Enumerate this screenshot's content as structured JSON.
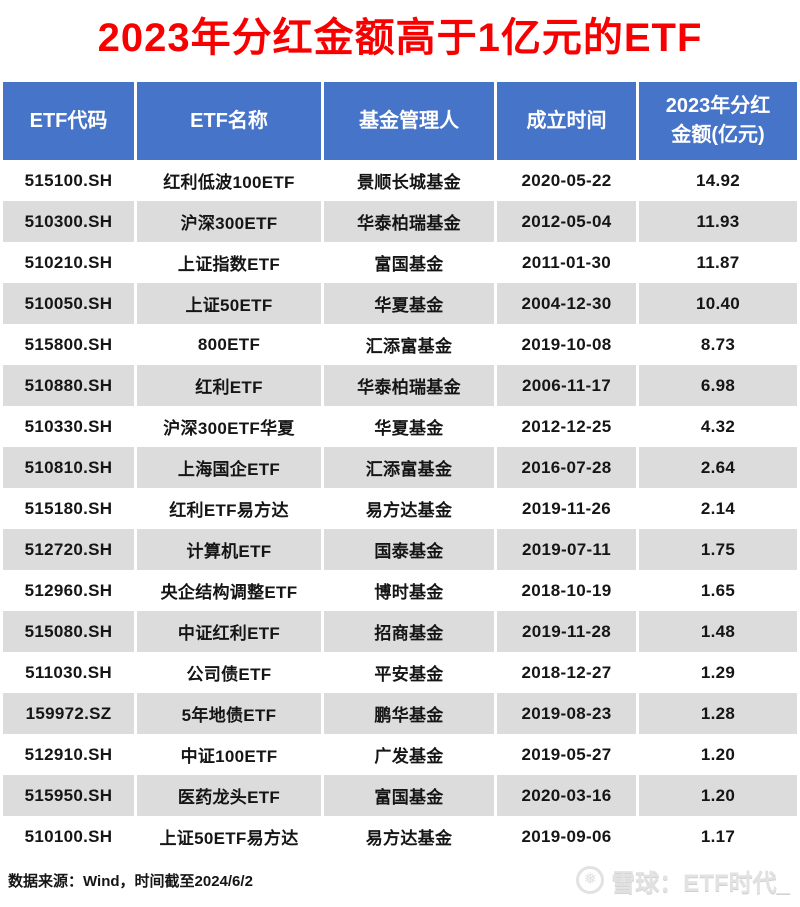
{
  "title": "2023年分红金额高于1亿元的ETF",
  "header_display": [
    "ETF代码",
    "ETF名称",
    "基金管理人",
    "成立时间",
    "2023年分红\n金额(亿元)"
  ],
  "chart_data": {
    "type": "table",
    "title": "2023年分红金额高于1亿元的ETF",
    "columns": [
      "ETF代码",
      "ETF名称",
      "基金管理人",
      "成立时间",
      "2023年分红金额(亿元)"
    ],
    "rows": [
      [
        "515100.SH",
        "红利低波100ETF",
        "景顺长城基金",
        "2020-05-22",
        "14.92"
      ],
      [
        "510300.SH",
        "沪深300ETF",
        "华泰柏瑞基金",
        "2012-05-04",
        "11.93"
      ],
      [
        "510210.SH",
        "上证指数ETF",
        "富国基金",
        "2011-01-30",
        "11.87"
      ],
      [
        "510050.SH",
        "上证50ETF",
        "华夏基金",
        "2004-12-30",
        "10.40"
      ],
      [
        "515800.SH",
        "800ETF",
        "汇添富基金",
        "2019-10-08",
        "8.73"
      ],
      [
        "510880.SH",
        "红利ETF",
        "华泰柏瑞基金",
        "2006-11-17",
        "6.98"
      ],
      [
        "510330.SH",
        "沪深300ETF华夏",
        "华夏基金",
        "2012-12-25",
        "4.32"
      ],
      [
        "510810.SH",
        "上海国企ETF",
        "汇添富基金",
        "2016-07-28",
        "2.64"
      ],
      [
        "515180.SH",
        "红利ETF易方达",
        "易方达基金",
        "2019-11-26",
        "2.14"
      ],
      [
        "512720.SH",
        "计算机ETF",
        "国泰基金",
        "2019-07-11",
        "1.75"
      ],
      [
        "512960.SH",
        "央企结构调整ETF",
        "博时基金",
        "2018-10-19",
        "1.65"
      ],
      [
        "515080.SH",
        "中证红利ETF",
        "招商基金",
        "2019-11-28",
        "1.48"
      ],
      [
        "511030.SH",
        "公司债ETF",
        "平安基金",
        "2018-12-27",
        "1.29"
      ],
      [
        "159972.SZ",
        "5年地债ETF",
        "鹏华基金",
        "2019-08-23",
        "1.28"
      ],
      [
        "512910.SH",
        "中证100ETF",
        "广发基金",
        "2019-05-27",
        "1.20"
      ],
      [
        "515950.SH",
        "医药龙头ETF",
        "富国基金",
        "2020-03-16",
        "1.20"
      ],
      [
        "510100.SH",
        "上证50ETF易方达",
        "易方达基金",
        "2019-09-06",
        "1.17"
      ]
    ]
  },
  "footer": {
    "source_note": "数据来源：Wind，时间截至2024/6/2",
    "watermark_brand": "雪球：ETF时代_",
    "watermark_logo": "❅"
  },
  "colors": {
    "title_red": "#f80000",
    "header_blue": "#4674c9",
    "row_alt_gray": "#dcdcdc",
    "watermark_gray": "#e2e2e2"
  }
}
